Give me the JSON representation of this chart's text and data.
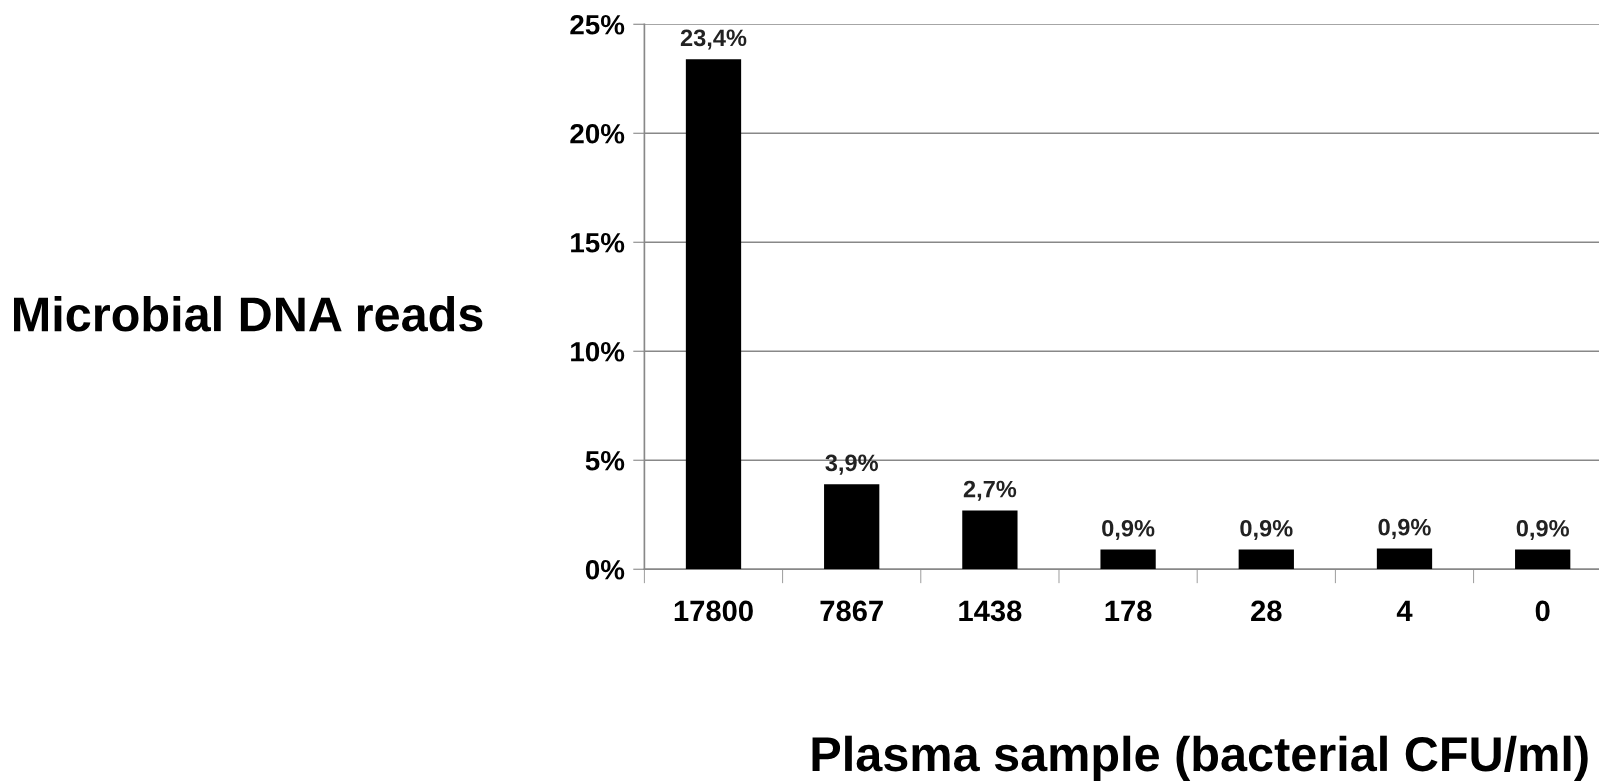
{
  "chart_data": {
    "type": "bar",
    "xlabel": "Plasma sample (bacterial CFU/ml)",
    "ylabel": "Microbial DNA reads",
    "categories": [
      "17800",
      "7867",
      "1438",
      "178",
      "28",
      "4",
      "0"
    ],
    "values": [
      23.4,
      3.9,
      2.7,
      0.9,
      0.9,
      0.95,
      0.9
    ],
    "value_labels": [
      "23,4%",
      "3,9%",
      "2,7%",
      "0,9%",
      "0,9%",
      "0,9%",
      "0,9%"
    ],
    "color": "#000000",
    "ylim": [
      0,
      25
    ],
    "yticks": [
      {
        "value": 0,
        "label": "0%"
      },
      {
        "value": 5,
        "label": "5%"
      },
      {
        "value": 10,
        "label": "10%"
      },
      {
        "value": 15,
        "label": "15%"
      },
      {
        "value": 20,
        "label": "20%"
      },
      {
        "value": 25,
        "label": "25%"
      }
    ],
    "grid": "y"
  }
}
